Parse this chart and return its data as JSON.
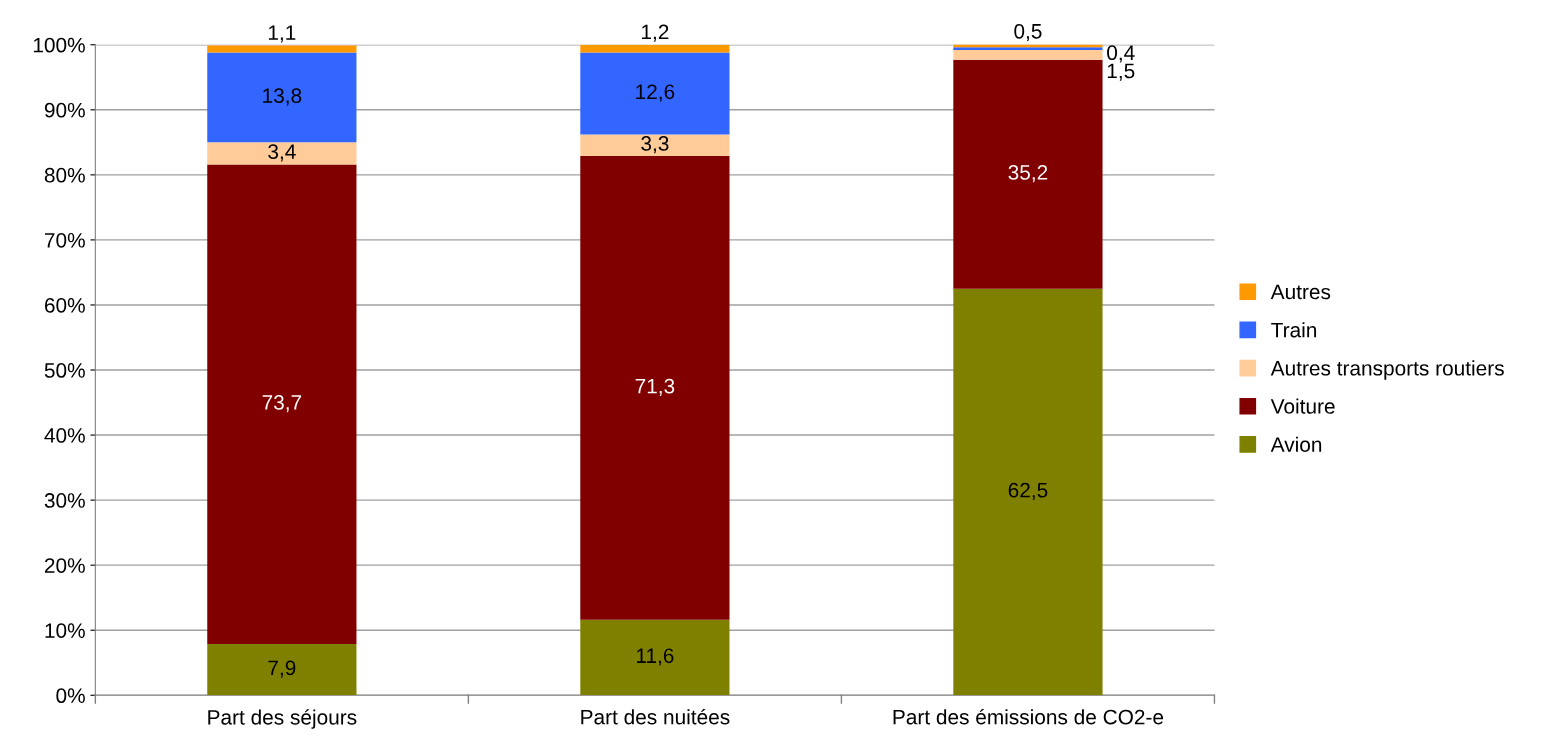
{
  "chart_data": {
    "type": "bar",
    "stacked": true,
    "categories": [
      "Part des séjours",
      "Part des nuitées",
      "Part des émissions de CO2-e"
    ],
    "series": [
      {
        "name": "Avion",
        "color": "#808000",
        "values": [
          7.9,
          11.6,
          62.5
        ],
        "value_labels": [
          "7,9",
          "11,6",
          "62,5"
        ]
      },
      {
        "name": "Voiture",
        "color": "#800000",
        "values": [
          73.7,
          71.3,
          35.2
        ],
        "value_labels": [
          "73,7",
          "71,3",
          "35,2"
        ]
      },
      {
        "name": "Autres transports routiers",
        "color": "#ffcc99",
        "values": [
          3.4,
          3.3,
          1.5
        ],
        "value_labels": [
          "3,4",
          "3,3",
          "1,5"
        ]
      },
      {
        "name": "Train",
        "color": "#3366ff",
        "values": [
          13.8,
          12.6,
          0.4
        ],
        "value_labels": [
          "13,8",
          "12,6",
          "0,4"
        ]
      },
      {
        "name": "Autres",
        "color": "#ff9900",
        "values": [
          1.1,
          1.2,
          0.5
        ],
        "value_labels": [
          "1,1",
          "1,2",
          "0,5"
        ]
      }
    ],
    "ylim": [
      0,
      100
    ],
    "yticks": [
      {
        "value": 0,
        "label": "0%"
      },
      {
        "value": 10,
        "label": "10%"
      },
      {
        "value": 20,
        "label": "20%"
      },
      {
        "value": 30,
        "label": "30%"
      },
      {
        "value": 40,
        "label": "40%"
      },
      {
        "value": 50,
        "label": "50%"
      },
      {
        "value": 60,
        "label": "60%"
      },
      {
        "value": 70,
        "label": "70%"
      },
      {
        "value": 80,
        "label": "80%"
      },
      {
        "value": 90,
        "label": "90%"
      },
      {
        "value": 100,
        "label": "100%"
      }
    ],
    "grid": "y",
    "legend": "right",
    "marker": "square"
  }
}
